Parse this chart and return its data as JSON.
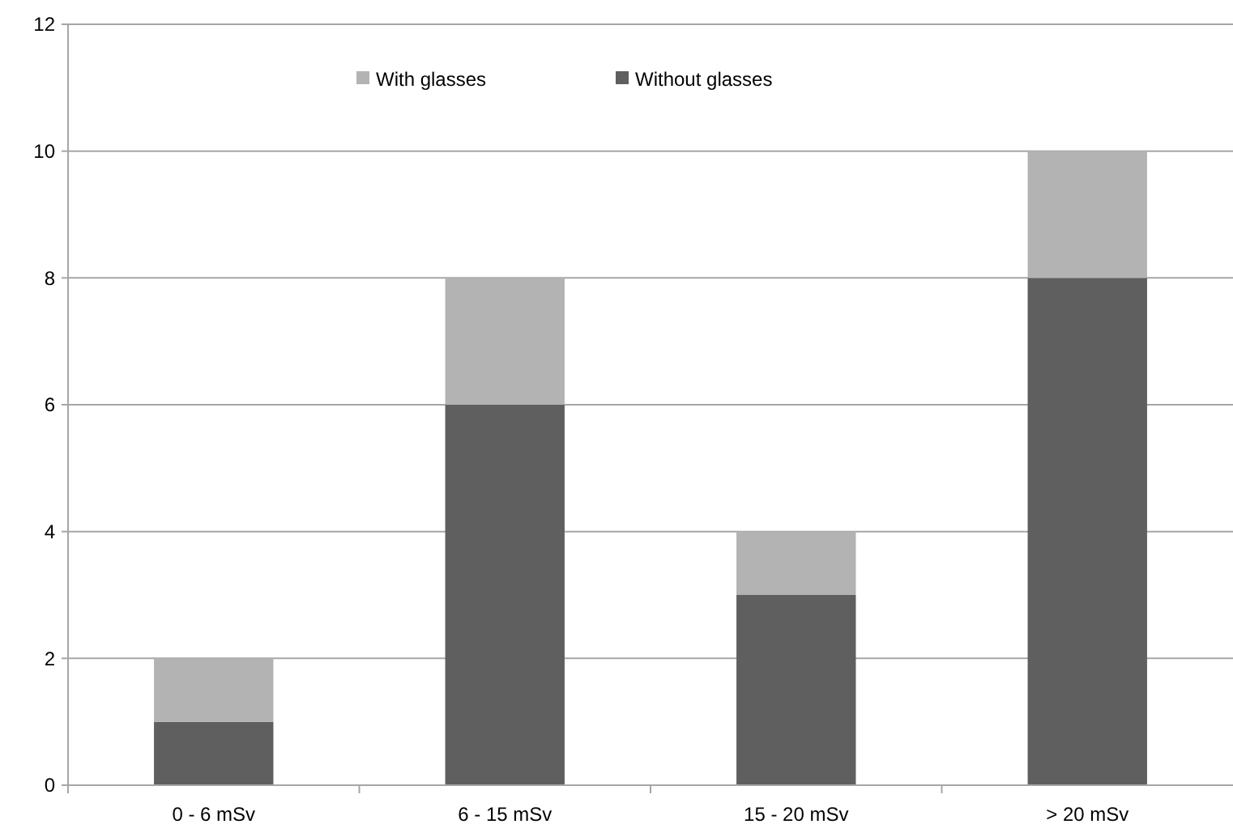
{
  "chart_data": {
    "type": "bar",
    "stacked": true,
    "categories": [
      "0 - 6 mSv",
      "6 - 15 mSv",
      "15 - 20 mSv",
      "> 20 mSv"
    ],
    "series": [
      {
        "name": "Without glasses",
        "color": "#5f5f5f",
        "values": [
          1,
          6,
          3,
          8
        ]
      },
      {
        "name": "With glasses",
        "color": "#b3b3b3",
        "values": [
          1,
          2,
          1,
          2
        ]
      }
    ],
    "ylim": [
      0,
      12
    ],
    "yticks": [
      0,
      2,
      4,
      6,
      8,
      10,
      12
    ],
    "grid": "y",
    "legend": "top"
  }
}
